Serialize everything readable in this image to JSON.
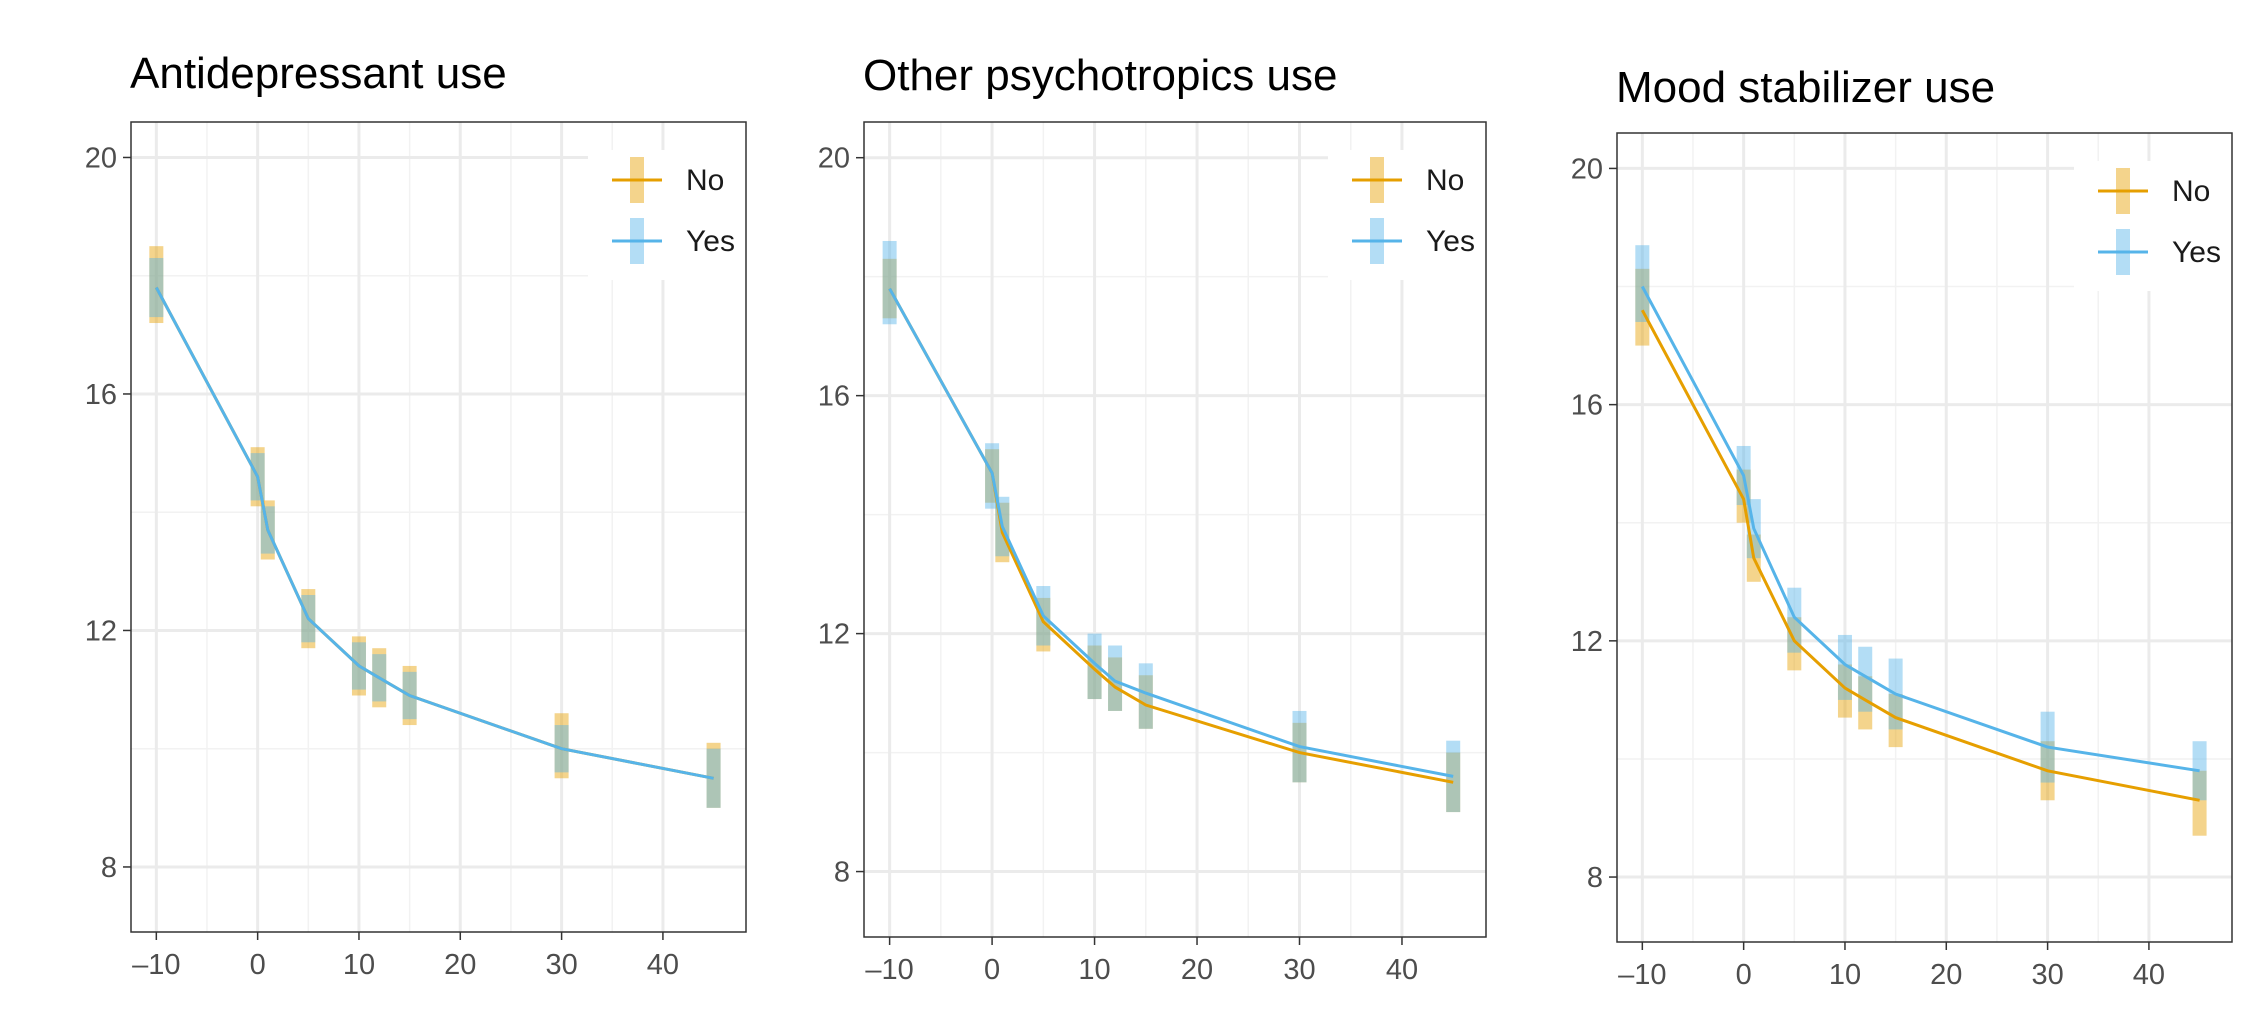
{
  "chart_data": [
    {
      "type": "line",
      "title": "Antidepressant use",
      "xlabel": "",
      "ylabel": "",
      "x": [
        -10,
        0,
        1,
        5,
        10,
        12,
        15,
        30,
        45
      ],
      "xticks": [
        -10,
        0,
        10,
        20,
        30,
        40
      ],
      "yticks": [
        8,
        12,
        16,
        20
      ],
      "xlim": [
        -12.5,
        48.2
      ],
      "ylim": [
        6.9,
        20.6
      ],
      "grid": true,
      "legend_position": "top-right",
      "series": [
        {
          "name": "No",
          "color": "#E69F00",
          "values": [
            17.8,
            14.6,
            13.7,
            12.2,
            11.4,
            11.2,
            10.9,
            10.0,
            9.5
          ],
          "lower": [
            17.2,
            14.1,
            13.2,
            11.7,
            10.9,
            10.7,
            10.4,
            9.5,
            9.0
          ],
          "upper": [
            18.5,
            15.1,
            14.2,
            12.7,
            11.9,
            11.7,
            11.4,
            10.6,
            10.1
          ]
        },
        {
          "name": "Yes",
          "color": "#56B4E9",
          "values": [
            17.8,
            14.6,
            13.7,
            12.2,
            11.4,
            11.2,
            10.9,
            10.0,
            9.5
          ],
          "lower": [
            17.3,
            14.2,
            13.3,
            11.8,
            11.0,
            10.8,
            10.5,
            9.6,
            9.0
          ],
          "upper": [
            18.3,
            15.0,
            14.1,
            12.6,
            11.8,
            11.6,
            11.3,
            10.4,
            10.0
          ]
        }
      ]
    },
    {
      "type": "line",
      "title": "Other psychotropics use",
      "xlabel": "",
      "ylabel": "",
      "x": [
        -10,
        0,
        1,
        5,
        10,
        12,
        15,
        30,
        45
      ],
      "xticks": [
        -10,
        0,
        10,
        20,
        30,
        40
      ],
      "yticks": [
        8,
        12,
        16,
        20
      ],
      "xlim": [
        -12.5,
        48.2
      ],
      "ylim": [
        6.9,
        20.6
      ],
      "grid": true,
      "legend_position": "top-right",
      "series": [
        {
          "name": "No",
          "color": "#E69F00",
          "values": [
            17.8,
            14.7,
            13.7,
            12.2,
            11.4,
            11.1,
            10.8,
            10.0,
            9.5
          ],
          "lower": [
            17.3,
            14.2,
            13.2,
            11.7,
            10.9,
            10.7,
            10.4,
            9.5,
            9.0
          ],
          "upper": [
            18.3,
            15.1,
            14.2,
            12.6,
            11.8,
            11.6,
            11.3,
            10.5,
            10.0
          ]
        },
        {
          "name": "Yes",
          "color": "#56B4E9",
          "values": [
            17.8,
            14.7,
            13.8,
            12.3,
            11.5,
            11.2,
            11.0,
            10.1,
            9.6
          ],
          "lower": [
            17.2,
            14.1,
            13.3,
            11.8,
            10.9,
            10.7,
            10.4,
            9.5,
            9.0
          ],
          "upper": [
            18.6,
            15.2,
            14.3,
            12.8,
            12.0,
            11.8,
            11.5,
            10.7,
            10.2
          ]
        }
      ]
    },
    {
      "type": "line",
      "title": "Mood stabilizer use",
      "xlabel": "",
      "ylabel": "",
      "x": [
        -10,
        0,
        1,
        5,
        10,
        12,
        15,
        30,
        45
      ],
      "xticks": [
        -10,
        0,
        10,
        20,
        30,
        40
      ],
      "yticks": [
        8,
        12,
        16,
        20
      ],
      "xlim": [
        -12.5,
        48.2
      ],
      "ylim": [
        6.9,
        20.6
      ],
      "grid": true,
      "legend_position": "top-right",
      "series": [
        {
          "name": "No",
          "color": "#E69F00",
          "values": [
            17.6,
            14.4,
            13.4,
            12.0,
            11.2,
            11.0,
            10.7,
            9.8,
            9.3
          ],
          "lower": [
            17.0,
            14.0,
            13.0,
            11.5,
            10.7,
            10.5,
            10.2,
            9.3,
            8.7
          ],
          "upper": [
            18.3,
            14.9,
            13.8,
            12.4,
            11.6,
            11.4,
            11.1,
            10.3,
            9.8
          ]
        },
        {
          "name": "Yes",
          "color": "#56B4E9",
          "values": [
            18.0,
            14.8,
            13.9,
            12.4,
            11.6,
            11.4,
            11.1,
            10.2,
            9.8
          ],
          "lower": [
            17.4,
            14.3,
            13.4,
            11.8,
            11.0,
            10.8,
            10.5,
            9.6,
            9.3
          ],
          "upper": [
            18.7,
            15.3,
            14.4,
            12.9,
            12.1,
            11.9,
            11.7,
            10.8,
            10.3
          ]
        }
      ]
    }
  ]
}
